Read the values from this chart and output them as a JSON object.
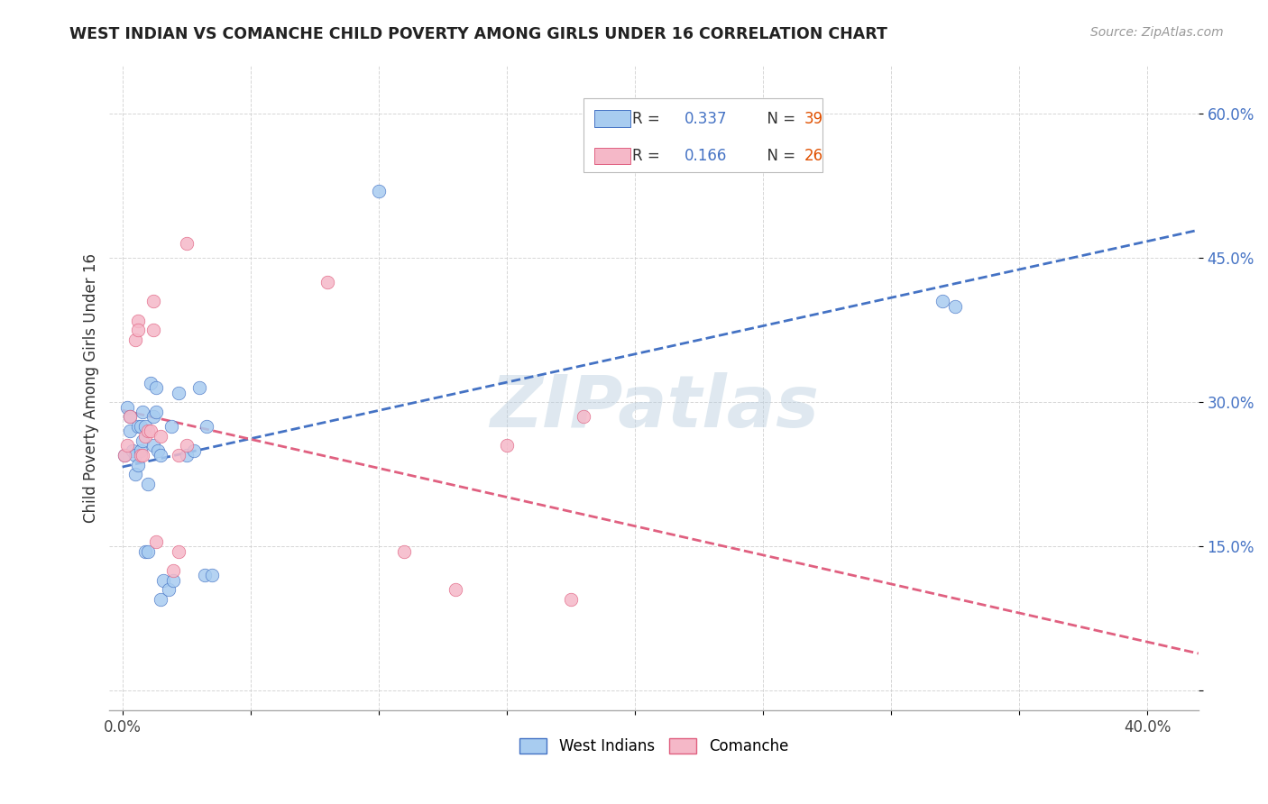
{
  "title": "WEST INDIAN VS COMANCHE CHILD POVERTY AMONG GIRLS UNDER 16 CORRELATION CHART",
  "source": "Source: ZipAtlas.com",
  "ylabel": "Child Poverty Among Girls Under 16",
  "xlim": [
    -0.005,
    0.42
  ],
  "ylim": [
    -0.02,
    0.65
  ],
  "watermark": "ZIPatlas",
  "legend_r1": "0.337",
  "legend_n1": "39",
  "legend_r2": "0.166",
  "legend_n2": "26",
  "legend_label1": "West Indians",
  "legend_label2": "Comanche",
  "blue_scatter_color": "#A8CCF0",
  "pink_scatter_color": "#F5B8C8",
  "blue_line_color": "#4472C4",
  "pink_line_color": "#E06080",
  "r_value_color": "#4472C4",
  "n_value_color": "#E05000",
  "west_indians_x": [
    0.001,
    0.002,
    0.003,
    0.003,
    0.004,
    0.005,
    0.005,
    0.006,
    0.006,
    0.007,
    0.007,
    0.008,
    0.008,
    0.009,
    0.009,
    0.01,
    0.01,
    0.011,
    0.012,
    0.012,
    0.013,
    0.013,
    0.014,
    0.015,
    0.015,
    0.016,
    0.018,
    0.019,
    0.02,
    0.022,
    0.025,
    0.028,
    0.03,
    0.032,
    0.033,
    0.035,
    0.1,
    0.32,
    0.325
  ],
  "west_indians_y": [
    0.245,
    0.295,
    0.27,
    0.285,
    0.25,
    0.225,
    0.245,
    0.235,
    0.275,
    0.25,
    0.275,
    0.26,
    0.29,
    0.275,
    0.145,
    0.145,
    0.215,
    0.32,
    0.255,
    0.285,
    0.29,
    0.315,
    0.25,
    0.245,
    0.095,
    0.115,
    0.105,
    0.275,
    0.115,
    0.31,
    0.245,
    0.25,
    0.315,
    0.12,
    0.275,
    0.12,
    0.52,
    0.405,
    0.4
  ],
  "comanche_x": [
    0.001,
    0.002,
    0.003,
    0.005,
    0.006,
    0.006,
    0.007,
    0.008,
    0.009,
    0.01,
    0.011,
    0.012,
    0.012,
    0.013,
    0.015,
    0.02,
    0.022,
    0.022,
    0.025,
    0.025,
    0.08,
    0.11,
    0.13,
    0.15,
    0.175,
    0.18
  ],
  "comanche_y": [
    0.245,
    0.255,
    0.285,
    0.365,
    0.385,
    0.375,
    0.245,
    0.245,
    0.265,
    0.27,
    0.27,
    0.405,
    0.375,
    0.155,
    0.265,
    0.125,
    0.245,
    0.145,
    0.255,
    0.465,
    0.425,
    0.145,
    0.105,
    0.255,
    0.095,
    0.285
  ]
}
